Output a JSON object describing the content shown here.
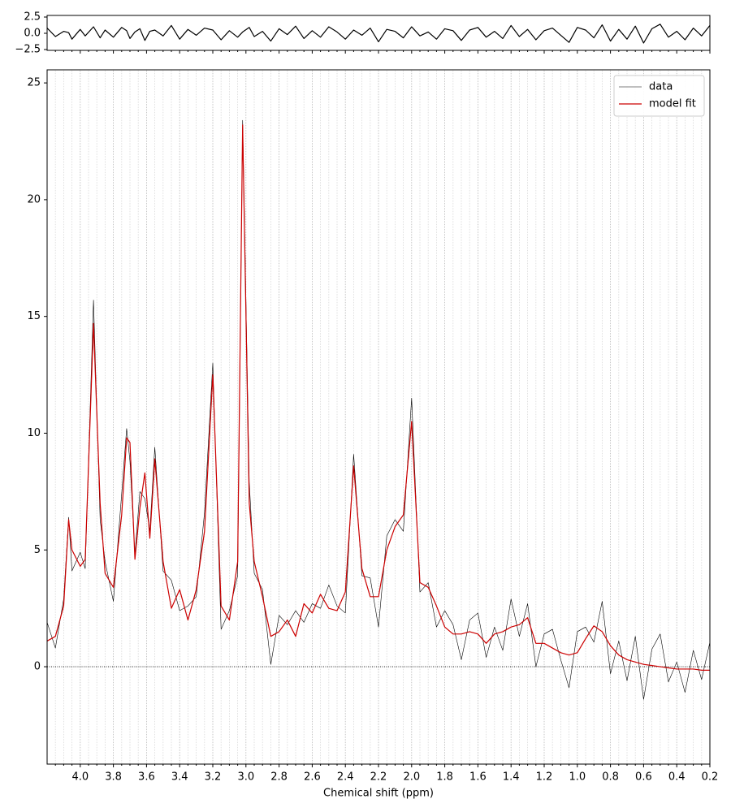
{
  "chart_data": [
    {
      "type": "line",
      "x": [
        4.2,
        4.15,
        4.1,
        4.07,
        4.05,
        4.0,
        3.97,
        3.92,
        3.88,
        3.85,
        3.8,
        3.75,
        3.72,
        3.7,
        3.67,
        3.64,
        3.61,
        3.58,
        3.55,
        3.5,
        3.45,
        3.4,
        3.35,
        3.3,
        3.25,
        3.2,
        3.15,
        3.1,
        3.05,
        3.02,
        2.98,
        2.95,
        2.9,
        2.85,
        2.8,
        2.75,
        2.7,
        2.65,
        2.6,
        2.55,
        2.5,
        2.45,
        2.4,
        2.35,
        2.3,
        2.25,
        2.2,
        2.15,
        2.1,
        2.05,
        2.0,
        1.95,
        1.9,
        1.85,
        1.8,
        1.75,
        1.7,
        1.65,
        1.6,
        1.55,
        1.5,
        1.45,
        1.4,
        1.35,
        1.3,
        1.25,
        1.2,
        1.15,
        1.1,
        1.05,
        1.0,
        0.95,
        0.9,
        0.85,
        0.8,
        0.75,
        0.7,
        0.65,
        0.6,
        0.55,
        0.5,
        0.45,
        0.4,
        0.35,
        0.3,
        0.25,
        0.2
      ],
      "series": [
        {
          "color": "#000000",
          "values": [
            0.8,
            -0.5,
            0.3,
            0.1,
            -0.9,
            0.6,
            -0.4,
            1.0,
            -0.7,
            0.5,
            -0.6,
            0.9,
            0.4,
            -0.8,
            0.2,
            0.7,
            -1.1,
            0.3,
            0.5,
            -0.4,
            1.2,
            -0.9,
            0.6,
            -0.3,
            0.8,
            0.5,
            -1.0,
            0.4,
            -0.6,
            0.2,
            0.9,
            -0.5,
            0.3,
            -1.2,
            0.7,
            -0.2,
            1.1,
            -0.8,
            0.4,
            -0.6,
            1.0,
            0.2,
            -0.9,
            0.5,
            -0.3,
            0.8,
            -1.3,
            0.6,
            0.3,
            -0.7,
            1.0,
            -0.4,
            0.2,
            -0.9,
            0.7,
            0.4,
            -1.1,
            0.5,
            0.9,
            -0.6,
            0.3,
            -0.8,
            1.2,
            -0.5,
            0.6,
            -1.0,
            0.4,
            0.8,
            -0.3,
            -1.4,
            0.9,
            0.5,
            -0.7,
            1.3,
            -1.2,
            0.6,
            -0.9,
            1.1,
            -1.5,
            0.7,
            1.4,
            -0.6,
            0.3,
            -1.0,
            0.8,
            -0.4,
            1.2
          ]
        }
      ],
      "xlim": [
        4.2,
        0.2
      ],
      "ylim": [
        -2.625,
        2.75
      ],
      "yticks": [
        {
          "value": 2.5,
          "label": "2.5"
        },
        {
          "value": 0,
          "label": "0.0"
        },
        {
          "value": -2.5,
          "label": "−2.5"
        }
      ]
    },
    {
      "type": "line",
      "x": [
        4.2,
        4.15,
        4.1,
        4.07,
        4.05,
        4.0,
        3.97,
        3.92,
        3.88,
        3.85,
        3.8,
        3.75,
        3.72,
        3.7,
        3.67,
        3.64,
        3.61,
        3.58,
        3.55,
        3.5,
        3.45,
        3.4,
        3.35,
        3.3,
        3.25,
        3.2,
        3.15,
        3.1,
        3.05,
        3.02,
        2.98,
        2.95,
        2.9,
        2.85,
        2.8,
        2.75,
        2.7,
        2.65,
        2.6,
        2.55,
        2.5,
        2.45,
        2.4,
        2.35,
        2.3,
        2.25,
        2.2,
        2.15,
        2.1,
        2.05,
        2.0,
        1.95,
        1.9,
        1.85,
        1.8,
        1.75,
        1.7,
        1.65,
        1.6,
        1.55,
        1.5,
        1.45,
        1.4,
        1.35,
        1.3,
        1.25,
        1.2,
        1.15,
        1.1,
        1.05,
        1.0,
        0.95,
        0.9,
        0.85,
        0.8,
        0.75,
        0.7,
        0.65,
        0.6,
        0.55,
        0.5,
        0.45,
        0.4,
        0.35,
        0.3,
        0.25,
        0.2
      ],
      "series": [
        {
          "name": "data",
          "color": "#000000",
          "width": 0.6,
          "values": [
            1.9,
            0.8,
            2.9,
            6.4,
            4.1,
            4.9,
            4.2,
            15.7,
            6.3,
            4.5,
            2.8,
            7.4,
            10.2,
            8.8,
            4.8,
            7.5,
            7.2,
            5.8,
            9.4,
            4.1,
            3.7,
            2.4,
            2.6,
            3.0,
            6.6,
            13.0,
            1.6,
            2.4,
            3.9,
            23.4,
            7.9,
            4.0,
            3.3,
            0.1,
            2.2,
            1.8,
            2.4,
            1.9,
            2.7,
            2.5,
            3.5,
            2.6,
            2.3,
            9.1,
            3.9,
            3.8,
            1.7,
            5.6,
            6.3,
            5.8,
            11.5,
            3.2,
            3.6,
            1.7,
            2.4,
            1.8,
            0.3,
            2.0,
            2.3,
            0.4,
            1.7,
            0.7,
            2.9,
            1.3,
            2.7,
            0.0,
            1.4,
            1.6,
            0.3,
            -0.9,
            1.5,
            1.7,
            1.05,
            2.8,
            -0.3,
            1.1,
            -0.6,
            1.3,
            -1.4,
            0.75,
            1.4,
            -0.65,
            0.2,
            -1.1,
            0.7,
            -0.55,
            1.05
          ]
        },
        {
          "name": "model fit",
          "color": "#cc0000",
          "width": 1.2,
          "values": [
            1.1,
            1.3,
            2.6,
            6.3,
            5.0,
            4.3,
            4.6,
            14.7,
            7.0,
            4.0,
            3.4,
            6.5,
            9.8,
            9.6,
            4.6,
            6.8,
            8.3,
            5.5,
            8.9,
            4.5,
            2.5,
            3.3,
            2.0,
            3.3,
            5.8,
            12.5,
            2.6,
            2.0,
            4.5,
            23.2,
            7.0,
            4.5,
            3.0,
            1.3,
            1.5,
            2.0,
            1.3,
            2.7,
            2.3,
            3.1,
            2.5,
            2.4,
            3.2,
            8.6,
            4.2,
            3.0,
            3.0,
            5.0,
            6.0,
            6.5,
            10.5,
            3.6,
            3.4,
            2.6,
            1.7,
            1.4,
            1.4,
            1.5,
            1.4,
            1.0,
            1.4,
            1.5,
            1.7,
            1.8,
            2.1,
            1.0,
            1.0,
            0.8,
            0.6,
            0.5,
            0.6,
            1.2,
            1.75,
            1.5,
            0.9,
            0.5,
            0.3,
            0.2,
            0.1,
            0.05,
            0.0,
            -0.05,
            -0.1,
            -0.1,
            -0.1,
            -0.15,
            -0.15
          ]
        }
      ],
      "x_label": "Chemical shift (ppm)",
      "xlim": [
        4.2,
        0.2
      ],
      "ylim": [
        -4.17,
        25.56
      ],
      "xticks": [
        {
          "value": 4.0,
          "label": "4.0"
        },
        3.8,
        3.6,
        3.4,
        3.2,
        {
          "value": 3.0,
          "label": "3.0"
        },
        2.8,
        2.6,
        2.4,
        2.2,
        {
          "value": 2.0,
          "label": "2.0"
        },
        1.8,
        1.6,
        1.4,
        1.2,
        {
          "value": 1.0,
          "label": "1.0"
        },
        0.8,
        0.6,
        0.4,
        0.2
      ],
      "x_minor_ticks": [
        4.15,
        4.1,
        4.05,
        3.95,
        3.9,
        3.85,
        3.75,
        3.7,
        3.65,
        3.55,
        3.5,
        3.45,
        3.35,
        3.3,
        3.25,
        3.15,
        3.1,
        3.05,
        2.95,
        2.9,
        2.85,
        2.75,
        2.7,
        2.65,
        2.55,
        2.5,
        2.45,
        2.35,
        2.3,
        2.25,
        2.15,
        2.1,
        2.05,
        1.95,
        1.9,
        1.85,
        1.75,
        1.7,
        1.65,
        1.55,
        1.5,
        1.45,
        1.35,
        1.3,
        1.25,
        1.15,
        1.1,
        1.05,
        0.95,
        0.9,
        0.85,
        0.75,
        0.7,
        0.65,
        0.55,
        0.5,
        0.45,
        0.35,
        0.3,
        0.25
      ],
      "yticks": [
        0,
        5,
        10,
        15,
        20,
        25
      ],
      "hline": 0,
      "grid": true,
      "legend": "upper right"
    }
  ]
}
